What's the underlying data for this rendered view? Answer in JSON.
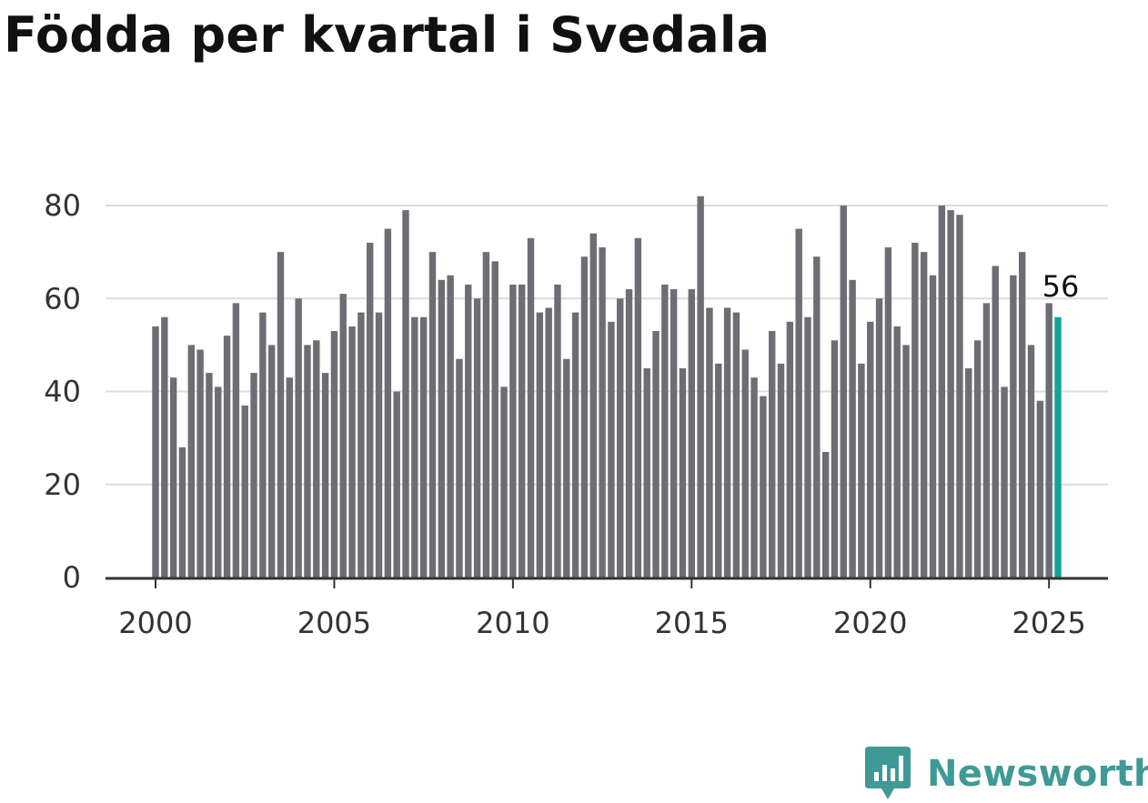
{
  "title": "Födda per kvartal i Svedala",
  "brand": {
    "name": "Newsworthy",
    "icon": "bar-chart-speech-bubble-icon",
    "color": "#3f9a96"
  },
  "chart_data": {
    "type": "bar",
    "title": "Födda per kvartal i Svedala",
    "xlabel": "",
    "ylabel": "",
    "ylim": [
      0,
      82
    ],
    "yticks": [
      0,
      20,
      40,
      60,
      80
    ],
    "xticks": [
      2000,
      2005,
      2010,
      2015,
      2020,
      2025
    ],
    "grid": true,
    "legend": "none",
    "bar_color": "#6e6d73",
    "highlight_color": "#14a398",
    "highlight_index": 101,
    "highlight_label": "56",
    "categories": [
      "2000 Q1",
      "2000 Q2",
      "2000 Q3",
      "2000 Q4",
      "2001 Q1",
      "2001 Q2",
      "2001 Q3",
      "2001 Q4",
      "2002 Q1",
      "2002 Q2",
      "2002 Q3",
      "2002 Q4",
      "2003 Q1",
      "2003 Q2",
      "2003 Q3",
      "2003 Q4",
      "2004 Q1",
      "2004 Q2",
      "2004 Q3",
      "2004 Q4",
      "2005 Q1",
      "2005 Q2",
      "2005 Q3",
      "2005 Q4",
      "2006 Q1",
      "2006 Q2",
      "2006 Q3",
      "2006 Q4",
      "2007 Q1",
      "2007 Q2",
      "2007 Q3",
      "2007 Q4",
      "2008 Q1",
      "2008 Q2",
      "2008 Q3",
      "2008 Q4",
      "2009 Q1",
      "2009 Q2",
      "2009 Q3",
      "2009 Q4",
      "2010 Q1",
      "2010 Q2",
      "2010 Q3",
      "2010 Q4",
      "2011 Q1",
      "2011 Q2",
      "2011 Q3",
      "2011 Q4",
      "2012 Q1",
      "2012 Q2",
      "2012 Q3",
      "2012 Q4",
      "2013 Q1",
      "2013 Q2",
      "2013 Q3",
      "2013 Q4",
      "2014 Q1",
      "2014 Q2",
      "2014 Q3",
      "2014 Q4",
      "2015 Q1",
      "2015 Q2",
      "2015 Q3",
      "2015 Q4",
      "2016 Q1",
      "2016 Q2",
      "2016 Q3",
      "2016 Q4",
      "2017 Q1",
      "2017 Q2",
      "2017 Q3",
      "2017 Q4",
      "2018 Q1",
      "2018 Q2",
      "2018 Q3",
      "2018 Q4",
      "2019 Q1",
      "2019 Q2",
      "2019 Q3",
      "2019 Q4",
      "2020 Q1",
      "2020 Q2",
      "2020 Q3",
      "2020 Q4",
      "2021 Q1",
      "2021 Q2",
      "2021 Q3",
      "2021 Q4",
      "2022 Q1",
      "2022 Q2",
      "2022 Q3",
      "2022 Q4",
      "2023 Q1",
      "2023 Q2",
      "2023 Q3",
      "2023 Q4",
      "2024 Q1",
      "2024 Q2",
      "2024 Q3",
      "2024 Q4",
      "2025 Q1",
      "2025 Q2"
    ],
    "values": [
      54,
      56,
      43,
      28,
      50,
      49,
      44,
      41,
      52,
      59,
      37,
      44,
      57,
      50,
      70,
      43,
      60,
      50,
      51,
      44,
      53,
      61,
      54,
      57,
      72,
      57,
      75,
      40,
      79,
      56,
      56,
      70,
      64,
      65,
      47,
      63,
      60,
      70,
      68,
      41,
      63,
      63,
      73,
      57,
      58,
      63,
      47,
      57,
      69,
      74,
      71,
      55,
      60,
      62,
      73,
      45,
      53,
      63,
      62,
      45,
      62,
      82,
      58,
      46,
      58,
      57,
      49,
      43,
      39,
      53,
      46,
      55,
      75,
      56,
      69,
      27,
      51,
      80,
      64,
      46,
      55,
      60,
      71,
      54,
      50,
      72,
      70,
      65,
      80,
      79,
      78,
      45,
      51,
      59,
      67,
      41,
      65,
      70,
      50,
      38,
      59,
      56
    ]
  }
}
